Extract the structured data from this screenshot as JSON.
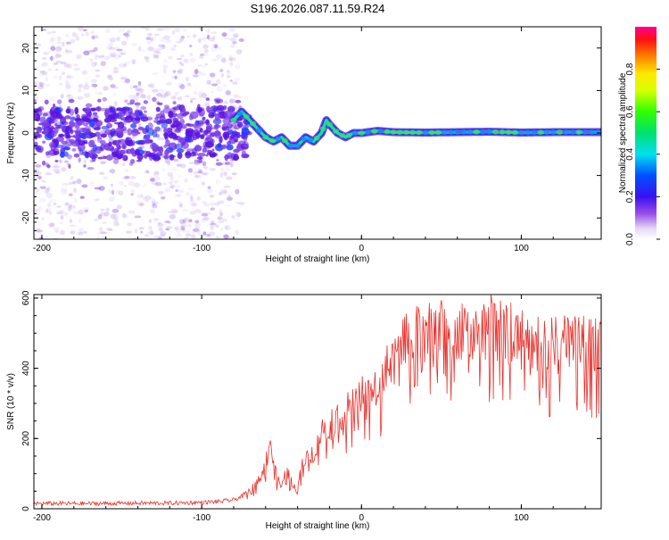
{
  "title": "S196.2026.087.11.59.R24",
  "chart_data": [
    {
      "type": "heatmap",
      "title": "S196.2026.087.11.59.R24",
      "xlabel": "Height of straight line (km)",
      "ylabel": "Frequency (Hz)",
      "xlim": [
        -205,
        150
      ],
      "ylim": [
        -25,
        25
      ],
      "xticks": [
        -200,
        -100,
        0,
        100
      ],
      "yticks": [
        -20,
        -10,
        0,
        10,
        20
      ],
      "colorbar": {
        "label": "Normalized spectral amplitude",
        "range": [
          0,
          1
        ],
        "ticks": [
          0.0,
          0.2,
          0.4,
          0.6,
          0.8
        ],
        "tick_labels": [
          "0.0",
          "0.2",
          "0.4",
          "0.6",
          "0.8"
        ]
      },
      "ridge": {
        "x": [
          -200,
          -180,
          -160,
          -140,
          -120,
          -100,
          -90,
          -80,
          -75,
          -70,
          -65,
          -60,
          -55,
          -50,
          -45,
          -40,
          -35,
          -30,
          -25,
          -22,
          -20,
          -15,
          -10,
          -5,
          0,
          10,
          20,
          40,
          60,
          80,
          100,
          120,
          150
        ],
        "freq": [
          1,
          1,
          0,
          1,
          0,
          1,
          1,
          3,
          5,
          3,
          1,
          -1,
          -2,
          -1,
          -3,
          -3,
          -1,
          -2,
          0,
          3,
          2,
          0,
          -1,
          0,
          0,
          0.5,
          0.2,
          0.1,
          0.2,
          0.3,
          0.1,
          0.2,
          0.2
        ]
      }
    },
    {
      "type": "line",
      "xlabel": "Height of straight line (km)",
      "ylabel": "SNR (10 * v/v)",
      "xlim": [
        -205,
        150
      ],
      "ylim": [
        0,
        610
      ],
      "xticks": [
        -200,
        -100,
        0,
        100
      ],
      "yticks": [
        0,
        200,
        400,
        600
      ],
      "series": [
        {
          "name": "SNR",
          "color": "#e8302a",
          "x": [
            -205,
            -180,
            -160,
            -140,
            -120,
            -100,
            -90,
            -80,
            -75,
            -70,
            -65,
            -60,
            -57,
            -55,
            -52,
            -50,
            -47,
            -45,
            -42,
            -40,
            -37,
            -35,
            -32,
            -30,
            -25,
            -20,
            -15,
            -10,
            -5,
            0,
            5,
            10,
            15,
            20,
            25,
            30,
            40,
            50,
            60,
            70,
            80,
            90,
            95,
            100,
            110,
            120,
            130,
            140,
            150
          ],
          "y": [
            15,
            15,
            15,
            16,
            16,
            18,
            20,
            25,
            35,
            50,
            80,
            130,
            200,
            120,
            80,
            60,
            110,
            90,
            60,
            50,
            150,
            130,
            170,
            160,
            220,
            250,
            260,
            280,
            300,
            320,
            340,
            360,
            390,
            430,
            460,
            480,
            500,
            505,
            510,
            505,
            520,
            515,
            500,
            480,
            475,
            470,
            468,
            465,
            465
          ]
        }
      ]
    }
  ]
}
